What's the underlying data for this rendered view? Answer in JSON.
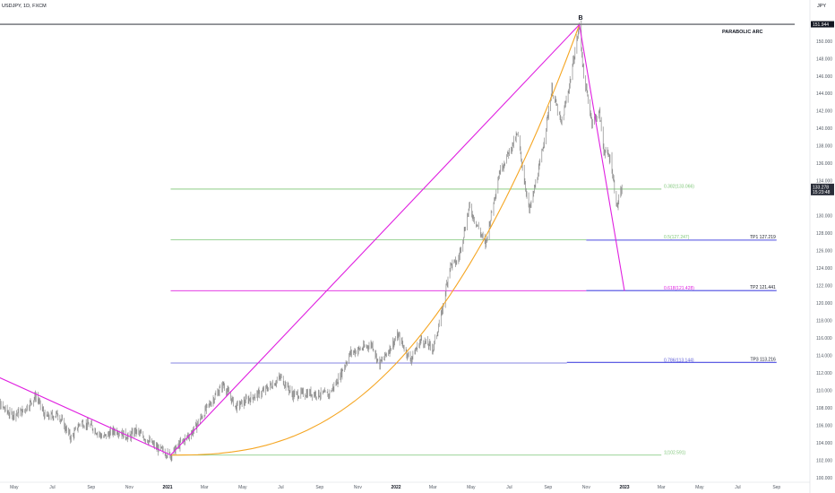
{
  "chart_data": {
    "type": "line",
    "title": "USDJPY, 1D, FXCM",
    "currency": "JPY",
    "annotation_text": "PARABOLIC ARC",
    "wave_label": "B",
    "ylim": [
      100,
      153
    ],
    "y_ticks": [
      {
        "value": 150,
        "label": "150.000"
      },
      {
        "value": 148,
        "label": "148.000"
      },
      {
        "value": 146,
        "label": "146.000"
      },
      {
        "value": 144,
        "label": "144.000"
      },
      {
        "value": 142,
        "label": "142.000"
      },
      {
        "value": 140,
        "label": "140.000"
      },
      {
        "value": 138,
        "label": "138.000"
      },
      {
        "value": 136,
        "label": "136.000"
      },
      {
        "value": 134,
        "label": "134.000"
      },
      {
        "value": 130,
        "label": "130.000"
      },
      {
        "value": 128,
        "label": "128.000"
      },
      {
        "value": 126,
        "label": "126.000"
      },
      {
        "value": 124,
        "label": "124.000"
      },
      {
        "value": 122,
        "label": "122.000"
      },
      {
        "value": 120,
        "label": "120.000"
      },
      {
        "value": 118,
        "label": "118.000"
      },
      {
        "value": 116,
        "label": "116.000"
      },
      {
        "value": 114,
        "label": "114.000"
      },
      {
        "value": 112,
        "label": "112.000"
      },
      {
        "value": 110,
        "label": "110.000"
      },
      {
        "value": 108,
        "label": "108.000"
      },
      {
        "value": 106,
        "label": "106.000"
      },
      {
        "value": 104,
        "label": "104.000"
      },
      {
        "value": 102,
        "label": "102.000"
      },
      {
        "value": 100,
        "label": "100.000"
      }
    ],
    "x_ticks": [
      {
        "date": "2020-05-01",
        "label": "May"
      },
      {
        "date": "2020-07-01",
        "label": "Jul"
      },
      {
        "date": "2020-09-01",
        "label": "Sep"
      },
      {
        "date": "2020-11-01",
        "label": "Nov"
      },
      {
        "date": "2021-01-01",
        "label": "2021",
        "bold": true
      },
      {
        "date": "2021-03-01",
        "label": "Mar"
      },
      {
        "date": "2021-05-01",
        "label": "May"
      },
      {
        "date": "2021-07-01",
        "label": "Jul"
      },
      {
        "date": "2021-09-01",
        "label": "Sep"
      },
      {
        "date": "2021-11-01",
        "label": "Nov"
      },
      {
        "date": "2022-01-01",
        "label": "2022",
        "bold": true
      },
      {
        "date": "2022-03-01",
        "label": "Mar"
      },
      {
        "date": "2022-05-01",
        "label": "May"
      },
      {
        "date": "2022-07-01",
        "label": "Jul"
      },
      {
        "date": "2022-09-01",
        "label": "Sep"
      },
      {
        "date": "2022-11-01",
        "label": "Nov"
      },
      {
        "date": "2023-01-01",
        "label": "2023",
        "bold": true
      },
      {
        "date": "2023-03-01",
        "label": "Mar"
      },
      {
        "date": "2023-05-01",
        "label": "May"
      },
      {
        "date": "2023-07-01",
        "label": "Jul"
      },
      {
        "date": "2023-09-01",
        "label": "Sep"
      }
    ],
    "price_series": {
      "name": "USDJPY",
      "color": "#8a8a8a",
      "points": [
        [
          "2020-03-20",
          110.8
        ],
        [
          "2020-04-05",
          108.6
        ],
        [
          "2020-04-25",
          107.2
        ],
        [
          "2020-05-15",
          107.6
        ],
        [
          "2020-06-05",
          109.4
        ],
        [
          "2020-06-20",
          106.9
        ],
        [
          "2020-07-10",
          107.3
        ],
        [
          "2020-07-31",
          104.5
        ],
        [
          "2020-08-15",
          106.4
        ],
        [
          "2020-09-01",
          105.9
        ],
        [
          "2020-09-20",
          104.6
        ],
        [
          "2020-10-10",
          105.5
        ],
        [
          "2020-11-01",
          104.6
        ],
        [
          "2020-11-10",
          105.4
        ],
        [
          "2020-12-01",
          104.3
        ],
        [
          "2020-12-15",
          103.4
        ],
        [
          "2021-01-06",
          102.6
        ],
        [
          "2021-01-20",
          103.8
        ],
        [
          "2021-02-10",
          105.3
        ],
        [
          "2021-03-05",
          108.0
        ],
        [
          "2021-03-31",
          110.7
        ],
        [
          "2021-04-20",
          108.1
        ],
        [
          "2021-05-10",
          109.0
        ],
        [
          "2021-06-01",
          109.8
        ],
        [
          "2021-07-01",
          111.5
        ],
        [
          "2021-07-20",
          109.5
        ],
        [
          "2021-08-15",
          109.7
        ],
        [
          "2021-09-15",
          109.5
        ],
        [
          "2021-10-01",
          111.3
        ],
        [
          "2021-10-20",
          114.3
        ],
        [
          "2021-11-24",
          115.3
        ],
        [
          "2021-12-05",
          112.9
        ],
        [
          "2022-01-04",
          116.3
        ],
        [
          "2022-01-24",
          113.5
        ],
        [
          "2022-02-10",
          115.8
        ],
        [
          "2022-03-01",
          114.8
        ],
        [
          "2022-03-15",
          118.8
        ],
        [
          "2022-03-28",
          124.3
        ],
        [
          "2022-04-10",
          124.8
        ],
        [
          "2022-04-28",
          131.0
        ],
        [
          "2022-05-24",
          126.7
        ],
        [
          "2022-06-15",
          135.0
        ],
        [
          "2022-07-14",
          139.3
        ],
        [
          "2022-08-02",
          130.5
        ],
        [
          "2022-08-20",
          136.2
        ],
        [
          "2022-09-07",
          144.5
        ],
        [
          "2022-09-22",
          140.5
        ],
        [
          "2022-10-05",
          145.0
        ],
        [
          "2022-10-21",
          151.9
        ],
        [
          "2022-10-28",
          146.0
        ],
        [
          "2022-11-10",
          140.8
        ],
        [
          "2022-11-22",
          141.8
        ],
        [
          "2022-11-29",
          137.5
        ],
        [
          "2022-12-10",
          136.5
        ],
        [
          "2022-12-20",
          131.0
        ],
        [
          "2022-12-28",
          133.1
        ]
      ]
    },
    "drawings": {
      "trendlines": [
        {
          "name": "decline-line",
          "color": "#e020e0",
          "from": [
            "2020-03-10",
            112.4
          ],
          "to": [
            "2021-01-06",
            102.6
          ]
        },
        {
          "name": "impulse-line",
          "color": "#e020e0",
          "from": [
            "2021-01-06",
            102.6
          ],
          "to": [
            "2022-10-21",
            151.9
          ]
        },
        {
          "name": "drop-line",
          "color": "#e020e0",
          "from": [
            "2022-10-21",
            151.9
          ],
          "to": [
            "2023-01-01",
            121.4
          ]
        }
      ],
      "arc": {
        "name": "parabolic-arc",
        "color": "#f5a623",
        "from": [
          "2021-01-06",
          102.6
        ],
        "to": [
          "2022-10-21",
          151.9
        ]
      },
      "fib_levels": [
        {
          "ratio": 0.382,
          "price": 133.066,
          "label": "0.382(133.066)",
          "color": "#7cc576",
          "from": "2021-01-06",
          "to": "2023-03-01"
        },
        {
          "ratio": 0.5,
          "price": 127.247,
          "label": "0.5(127.247)",
          "color": "#7cc576",
          "from": "2021-01-06",
          "to": "2022-11-01"
        },
        {
          "ratio": 0.618,
          "price": 121.428,
          "label": "0.618(121.428)",
          "color": "#e020e0",
          "from": "2021-01-06",
          "to": "2022-11-01"
        },
        {
          "ratio": 0.786,
          "price": 113.144,
          "label": "0.786(113.144)",
          "color": "#5b5bd6",
          "from": "2021-01-06",
          "to": "2022-10-01"
        },
        {
          "ratio": 1,
          "price": 102.591,
          "label": "1(102.591)",
          "color": "#7cc576",
          "from": "2021-01-06",
          "to": "2023-03-01"
        }
      ],
      "targets": [
        {
          "label": "TP1 127.219",
          "price": 127.219,
          "color": "#4a4ae0",
          "from": "2022-11-01",
          "to": "2023-09-01"
        },
        {
          "label": "TP2 121.441",
          "price": 121.441,
          "color": "#4a4ae0",
          "from": "2022-11-01",
          "to": "2023-09-01"
        },
        {
          "label": "TP3 113.216",
          "price": 113.216,
          "color": "#4a4ae0",
          "from": "2022-10-01",
          "to": "2023-09-01"
        }
      ],
      "peak_level": {
        "price": 151.944,
        "label": "151.944",
        "color": "#131722",
        "from": "2020-03-01",
        "to": "2023-09-30"
      },
      "last_price": {
        "price": 133.278,
        "label": "133.278",
        "countdown": "15:23:48"
      }
    }
  }
}
